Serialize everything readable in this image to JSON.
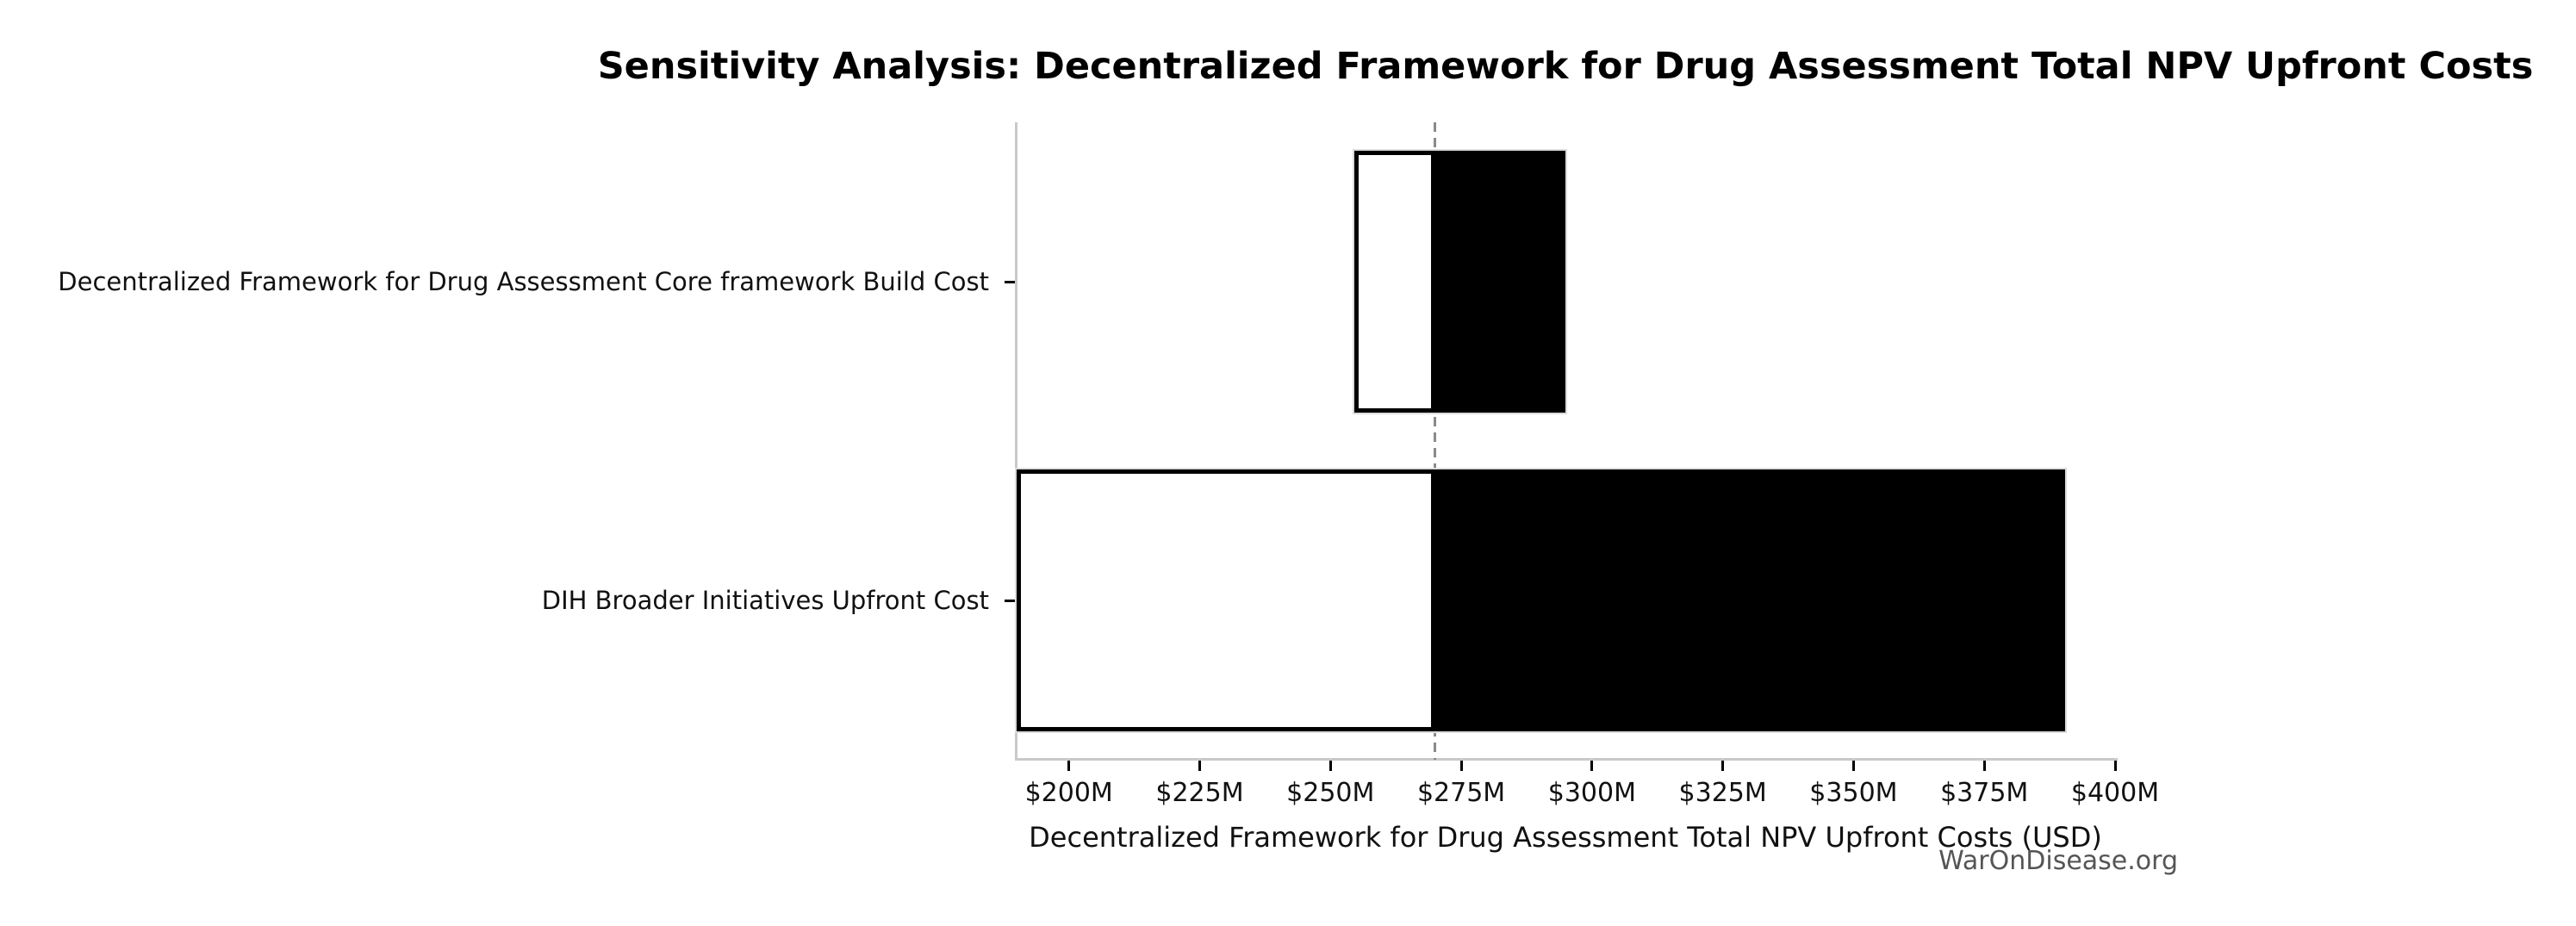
{
  "watermark": "WarOnDisease.org",
  "chart_data": {
    "type": "bar",
    "subtype": "tornado-sensitivity",
    "orientation": "horizontal",
    "title": "Sensitivity Analysis: Decentralized Framework for Drug Assessment Total NPV Upfront Costs",
    "xlabel": "Decentralized Framework for Drug Assessment Total NPV Upfront Costs (USD)",
    "ylabel": "",
    "unit": "USD millions",
    "xlim": [
      190,
      400
    ],
    "baseline_value": 270,
    "grid": false,
    "legend": null,
    "x_ticks": [
      {
        "value": 200,
        "label": "$200M"
      },
      {
        "value": 225,
        "label": "$225M"
      },
      {
        "value": 250,
        "label": "$250M"
      },
      {
        "value": 275,
        "label": "$275M"
      },
      {
        "value": 300,
        "label": "$300M"
      },
      {
        "value": 325,
        "label": "$325M"
      },
      {
        "value": 350,
        "label": "$350M"
      },
      {
        "value": 375,
        "label": "$375M"
      },
      {
        "value": 400,
        "label": "$400M"
      }
    ],
    "categories": [
      "Decentralized Framework for Drug Assessment Core framework Build Cost",
      "DIH Broader Initiatives Upfront Cost"
    ],
    "rows": [
      {
        "label": "Decentralized Framework for Drug Assessment Core framework Build Cost",
        "low": 254.5,
        "high": 295
      },
      {
        "label": "DIH Broader Initiatives Upfront Cost",
        "low": 190,
        "high": 390.5
      }
    ],
    "colors": {
      "low_side_fill": "#ffffff",
      "high_side_fill": "#000000",
      "bar_edge": "#000000",
      "bar_outer_rim": "#dcdcdc",
      "baseline_line": "#8a8a8a",
      "spine": "#c9c9c9",
      "tick": "#000000",
      "text": "#111111",
      "watermark": "#555555"
    }
  }
}
